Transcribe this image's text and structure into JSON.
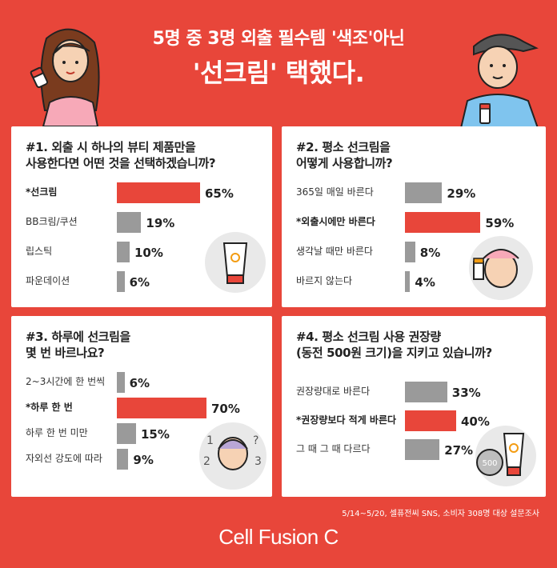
{
  "header": {
    "title_line1": "5명 중 3명 외출 필수템 '색조'아닌",
    "title_line2": "'선크림' 택했다."
  },
  "colors": {
    "background": "#e8463a",
    "highlight": "#e8463a",
    "bar": "#9a9a9a",
    "panel": "#ffffff"
  },
  "chart_data": [
    {
      "type": "bar",
      "title_lines": [
        "#1. 외출 시 하나의 뷰티 제품만을",
        "사용한다면 어떤 것을 선택하겠습니까?"
      ],
      "categories": [
        "*선크림",
        "BB크림/쿠션",
        "립스틱",
        "파운데이션"
      ],
      "values": [
        65,
        19,
        10,
        6
      ],
      "value_labels": [
        "65%",
        "19%",
        "10%",
        "6%"
      ],
      "highlight_index": 0
    },
    {
      "type": "bar",
      "title_lines": [
        "#2. 평소 선크림을",
        "어떻게 사용합니까?"
      ],
      "categories": [
        "365일 매일 바른다",
        "*외출시에만 바른다",
        "생각날 때만 바른다",
        "바르지 않는다"
      ],
      "values": [
        29,
        59,
        8,
        4
      ],
      "value_labels": [
        "29%",
        "59%",
        "8%",
        "4%"
      ],
      "highlight_index": 1
    },
    {
      "type": "bar",
      "title_lines": [
        "#3. 하루에 선크림을",
        "몇 번 바르나요?"
      ],
      "categories": [
        "2~3시간에 한 번씩",
        "*하루 한 번",
        "하루 한 번 미만",
        "자외선 강도에 따라"
      ],
      "values": [
        6,
        70,
        15,
        9
      ],
      "value_labels": [
        "6%",
        "70%",
        "15%",
        "9%"
      ],
      "highlight_index": 1
    },
    {
      "type": "bar",
      "title_lines": [
        "#4. 평소 선크림 사용 권장량",
        "(동전 500원 크기)을 지키고 있습니까?"
      ],
      "categories": [
        "권장량대로 바른다",
        "*권장량보다 적게 바른다",
        "그 때 그 때 다르다"
      ],
      "values": [
        33,
        40,
        27
      ],
      "value_labels": [
        "33%",
        "40%",
        "27%"
      ],
      "highlight_index": 1
    }
  ],
  "illustrations": {
    "coin_text": "500",
    "question_marks": [
      "1",
      "2",
      "?",
      "3"
    ]
  },
  "footnote": "5/14~5/20, 셀퓨전씨 SNS, 소비자 308명 대상 설문조사",
  "brand": "Cell Fusion C"
}
